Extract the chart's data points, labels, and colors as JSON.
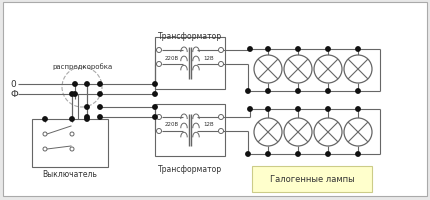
{
  "bg_color": "#e8e8e8",
  "white": "#ffffff",
  "line_color": "#666666",
  "border_color": "#999999",
  "dot_color": "#111111",
  "label_raspr": "распредкоробка",
  "label_0": "0",
  "label_f": "Ф",
  "label_vykl": "Выключатель",
  "label_trans1": "Трансформатор",
  "label_trans2": "Трансформатор",
  "label_220_1": "220В",
  "label_12_1": "12В",
  "label_220_2": "220В",
  "label_12_2": "12В",
  "label_halogen": "Галогенные лампы",
  "figsize": [
    4.3,
    2.01
  ],
  "dpi": 100
}
